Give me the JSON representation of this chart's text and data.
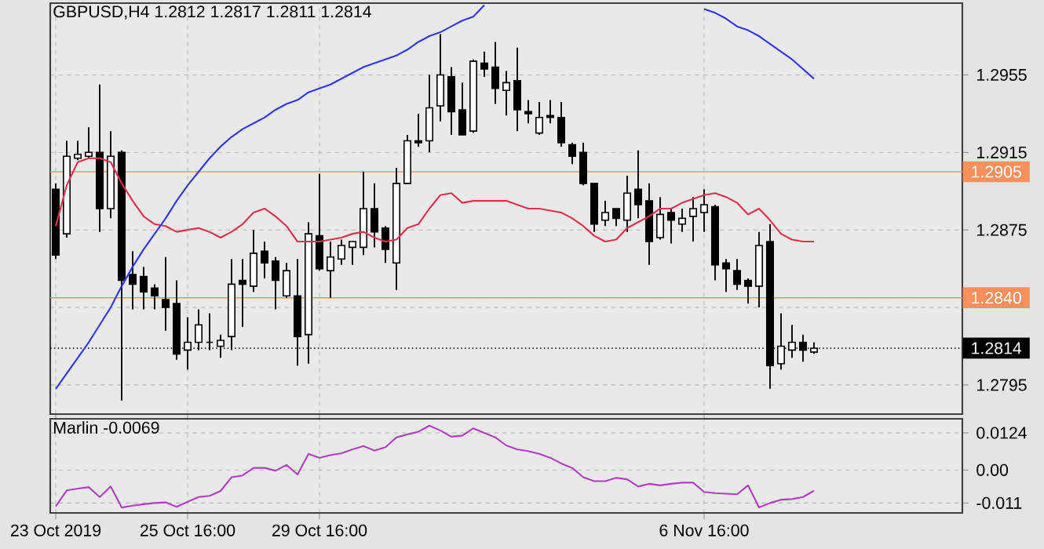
{
  "chart_data": [
    {
      "type": "candlestick",
      "title": "GBPUSD,H4  1.2812 1.2817 1.2811 1.2814",
      "categories": [
        null,
        null,
        null,
        null,
        null,
        null,
        null,
        null,
        null,
        null,
        null,
        null,
        null,
        null,
        null,
        null,
        null,
        null,
        null,
        null,
        null,
        null,
        null,
        null,
        null,
        null,
        null,
        null,
        null,
        null,
        null,
        null,
        null,
        null,
        null,
        null,
        null,
        null,
        null,
        null,
        null,
        null,
        null,
        null,
        null,
        null,
        null,
        null,
        null,
        null,
        null,
        null,
        null,
        null,
        null,
        null,
        null,
        null,
        null,
        null,
        null,
        null,
        null,
        null,
        null,
        null,
        null,
        null,
        null,
        null,
        null,
        null,
        null,
        null,
        null,
        null,
        null,
        null,
        null,
        null,
        null,
        null,
        null
      ],
      "ohlc": [
        [
          1.2896,
          1.2899,
          1.286,
          1.2862
        ],
        [
          1.2873,
          1.2921,
          1.2871,
          1.2913
        ],
        [
          1.2912,
          1.2921,
          1.2911,
          1.2914
        ],
        [
          1.2913,
          1.2928,
          1.2912,
          1.2915
        ],
        [
          1.2915,
          1.295,
          1.2874,
          1.2886
        ],
        [
          1.2886,
          1.2926,
          1.2881,
          1.2913
        ],
        [
          1.2915,
          1.2916,
          1.2787,
          1.2849
        ],
        [
          1.2852,
          1.2864,
          1.2834,
          1.2847
        ],
        [
          1.2851,
          1.2856,
          1.2834,
          1.2843
        ],
        [
          1.2845,
          1.2847,
          1.2834,
          1.2841
        ],
        [
          1.2839,
          1.2861,
          1.2823,
          1.2835
        ],
        [
          1.2837,
          1.2849,
          1.2808,
          1.2811
        ],
        [
          1.2813,
          1.283,
          1.2803,
          1.2817
        ],
        [
          1.2817,
          1.2834,
          1.2813,
          1.2826
        ],
        [
          1.2817,
          1.2832,
          1.2813,
          1.2817
        ],
        [
          1.2815,
          1.2821,
          1.2809,
          1.2818
        ],
        [
          1.282,
          1.286,
          1.2813,
          1.2847
        ],
        [
          1.2849,
          1.286,
          1.2825,
          1.2847
        ],
        [
          1.2846,
          1.2875,
          1.2843,
          1.2863
        ],
        [
          1.2864,
          1.2869,
          1.285,
          1.2858
        ],
        [
          1.2859,
          1.2861,
          1.2834,
          1.2849
        ],
        [
          1.2841,
          1.2858,
          1.284,
          1.2854
        ],
        [
          1.2841,
          1.286,
          1.2805,
          1.282
        ],
        [
          1.2821,
          1.2879,
          1.2806,
          1.2873
        ],
        [
          1.2872,
          1.2904,
          1.2854,
          1.2855
        ],
        [
          1.2854,
          1.2869,
          1.284,
          1.2861
        ],
        [
          1.286,
          1.287,
          1.2857,
          1.2867
        ],
        [
          1.2866,
          1.2869,
          1.2857,
          1.2869
        ],
        [
          1.2866,
          1.2905,
          1.2862,
          1.2886
        ],
        [
          1.2886,
          1.2899,
          1.2866,
          1.2874
        ],
        [
          1.2876,
          1.2877,
          1.2858,
          1.2865
        ],
        [
          1.2858,
          1.2907,
          1.2844,
          1.2899
        ],
        [
          1.2899,
          1.2924,
          1.2899,
          1.2921
        ],
        [
          1.2921,
          1.2935,
          1.2918,
          1.292
        ],
        [
          1.2921,
          1.2955,
          1.2915,
          1.2938
        ],
        [
          1.2939,
          1.2976,
          1.2931,
          1.2955
        ],
        [
          1.2954,
          1.2959,
          1.2924,
          1.2936
        ],
        [
          1.2937,
          1.2951,
          1.2924,
          1.2924
        ],
        [
          1.2926,
          1.2963,
          1.2925,
          1.2962
        ],
        [
          1.2961,
          1.2967,
          1.2954,
          1.2958
        ],
        [
          1.2959,
          1.2972,
          1.294,
          1.2948
        ],
        [
          1.2947,
          1.2957,
          1.2934,
          1.2951
        ],
        [
          1.2952,
          1.2969,
          1.2926,
          1.2937
        ],
        [
          1.2936,
          1.2942,
          1.293,
          1.2935
        ],
        [
          1.2925,
          1.2941,
          1.2924,
          1.2933
        ],
        [
          1.2934,
          1.2942,
          1.293,
          1.2933
        ],
        [
          1.2933,
          1.2941,
          1.2918,
          1.292
        ],
        [
          1.2919,
          1.292,
          1.2909,
          1.2913
        ],
        [
          1.2915,
          1.292,
          1.2898,
          1.2899
        ],
        [
          1.2899,
          1.2899,
          1.2874,
          1.2878
        ],
        [
          1.288,
          1.289,
          1.2877,
          1.2884
        ],
        [
          1.2886,
          1.2886,
          1.2877,
          1.2881
        ],
        [
          1.288,
          1.2903,
          1.2874,
          1.2894
        ],
        [
          1.2896,
          1.2916,
          1.2881,
          1.2888
        ],
        [
          1.289,
          1.2899,
          1.2857,
          1.2869
        ],
        [
          1.2871,
          1.2892,
          1.287,
          1.2883
        ],
        [
          1.2884,
          1.2886,
          1.2868,
          1.288
        ],
        [
          1.2878,
          1.2886,
          1.2874,
          1.2881
        ],
        [
          1.2882,
          1.2892,
          1.2869,
          1.2886
        ],
        [
          1.2884,
          1.2896,
          1.2874,
          1.2888
        ],
        [
          1.2887,
          1.2888,
          1.2849,
          1.2857
        ],
        [
          1.2858,
          1.286,
          1.2843,
          1.2855
        ],
        [
          1.2854,
          1.286,
          1.2844,
          1.2847
        ],
        [
          1.2849,
          1.285,
          1.2837,
          1.2846
        ],
        [
          1.2846,
          1.2874,
          1.2835,
          1.2867
        ],
        [
          1.2869,
          1.2878,
          1.2793,
          1.2805
        ],
        [
          1.2806,
          1.2832,
          1.2803,
          1.2815
        ],
        [
          1.2813,
          1.2826,
          1.2809,
          1.2817
        ],
        [
          1.2817,
          1.2821,
          1.2807,
          1.2813
        ],
        [
          1.2812,
          1.2817,
          1.2811,
          1.2814
        ],
        null,
        null,
        null,
        null,
        null,
        null,
        null,
        null,
        null,
        null,
        null,
        null,
        null
      ],
      "series": [
        {
          "type": "line",
          "color": "#e03050",
          "values": [
            1.2877,
            1.2898,
            1.291,
            1.2912,
            1.2912,
            1.291,
            1.2899,
            1.289,
            1.2882,
            1.2878,
            1.2877,
            1.2874,
            1.2875,
            1.2876,
            1.2874,
            1.2871,
            1.2874,
            1.2878,
            1.2884,
            1.2886,
            1.2882,
            1.2877,
            1.2869,
            1.2869,
            1.2869,
            1.287,
            1.2871,
            1.2873,
            1.2874,
            1.2871,
            1.2869,
            1.287,
            1.2876,
            1.2878,
            1.2886,
            1.2893,
            1.2894,
            1.2889,
            1.289,
            1.289,
            1.289,
            1.289,
            1.2888,
            1.2886,
            1.2886,
            1.2885,
            1.2884,
            1.2881,
            1.2877,
            1.2872,
            1.2869,
            1.287,
            1.2876,
            1.2879,
            1.2882,
            1.2886,
            1.2886,
            1.2889,
            1.2891,
            1.2893,
            1.2894,
            1.2892,
            1.2889,
            1.2883,
            1.2886,
            1.288,
            1.2873,
            1.287,
            1.2869,
            1.2869,
            null,
            null,
            null,
            null,
            null,
            null,
            null,
            null,
            null,
            null,
            null,
            null,
            null
          ]
        },
        {
          "type": "line",
          "color": "#3434ff",
          "values": [
            1.2793,
            1.2801,
            1.2809,
            1.2817,
            1.2826,
            1.2835,
            1.2846,
            1.2856,
            1.2865,
            1.2873,
            1.2881,
            1.289,
            1.2898,
            1.2905,
            1.2912,
            1.2918,
            1.2923,
            1.2927,
            1.293,
            1.2933,
            1.2937,
            1.294,
            1.2942,
            1.2946,
            1.2948,
            1.295,
            1.2953,
            1.2956,
            1.2959,
            1.2961,
            1.2963,
            1.2965,
            1.2968,
            1.2972,
            1.2975,
            1.2977,
            1.298,
            1.2983,
            1.2985,
            1.2991,
            null,
            null,
            null,
            null,
            null,
            null,
            null,
            null,
            null,
            null,
            null,
            null,
            null,
            null,
            null,
            null,
            null,
            null,
            null,
            1.2989,
            1.2987,
            1.2984,
            1.298,
            1.2978,
            1.2975,
            1.2971,
            1.2967,
            1.2963,
            1.2958,
            1.2953,
            null,
            null,
            null,
            null,
            null,
            null,
            null,
            null,
            null,
            null,
            null,
            null,
            null
          ]
        }
      ],
      "ylim": [
        1.278,
        1.2992
      ],
      "yticks": [
        1.2795,
        {
          "value": 1.2835,
          "label": null
        },
        1.2875,
        1.2915,
        1.2955
      ],
      "ref_lines": [
        {
          "axis": "y",
          "value": 1.2905,
          "label": "1.2905",
          "color": "#f7905c"
        },
        {
          "axis": "y",
          "value": 1.284,
          "label": "1.2840",
          "color": "#f7905c"
        },
        {
          "axis": "y",
          "value": 1.2814,
          "label": "1.2814",
          "color": "#000000",
          "line_style": "dotted"
        }
      ],
      "grid": true,
      "tick_labels": "y"
    },
    {
      "type": "line",
      "title": "Marlin -0.0069",
      "categories": [
        "23 Oct 2019",
        null,
        null,
        null,
        null,
        null,
        null,
        null,
        null,
        null,
        null,
        null,
        "25 Oct 16:00",
        null,
        null,
        null,
        null,
        null,
        null,
        null,
        null,
        null,
        null,
        null,
        "29 Oct 16:00",
        null,
        null,
        null,
        null,
        null,
        null,
        null,
        null,
        null,
        null,
        null,
        null,
        null,
        null,
        null,
        null,
        null,
        null,
        null,
        null,
        null,
        null,
        null,
        null,
        null,
        null,
        null,
        null,
        null,
        null,
        null,
        null,
        null,
        null,
        "6 Nov 16:00",
        null,
        null,
        null,
        null,
        null,
        null,
        null,
        null,
        null,
        null,
        null,
        null,
        null,
        null,
        null,
        null,
        null,
        null,
        null,
        null,
        null,
        null,
        null
      ],
      "series": [
        {
          "color": "#b040c0",
          "values": [
            -0.0121,
            -0.0068,
            -0.0062,
            -0.0057,
            -0.009,
            -0.0055,
            -0.0125,
            -0.0119,
            -0.0114,
            -0.011,
            -0.0108,
            -0.0123,
            -0.0106,
            -0.009,
            -0.0086,
            -0.007,
            -0.0024,
            -0.0018,
            0.0007,
            0.0007,
            -0.0002,
            0.0017,
            -0.0015,
            0.0054,
            0.0041,
            0.005,
            0.0056,
            0.0069,
            0.008,
            0.0065,
            0.0076,
            0.0109,
            0.0119,
            0.0128,
            0.0148,
            0.0132,
            0.0111,
            0.0115,
            0.0139,
            0.0124,
            0.0109,
            0.0082,
            0.0069,
            0.0063,
            0.0054,
            0.0041,
            0.0022,
            0.0007,
            -0.0024,
            -0.0037,
            -0.0037,
            -0.0026,
            -0.0031,
            -0.0055,
            -0.0046,
            -0.0051,
            -0.0046,
            -0.0042,
            -0.0042,
            -0.0073,
            -0.0077,
            -0.0079,
            -0.0081,
            -0.0051,
            -0.0125,
            -0.011,
            -0.0099,
            -0.0097,
            -0.009,
            -0.0069,
            null,
            null,
            null,
            null,
            null,
            null,
            null,
            null,
            null,
            null,
            null,
            null,
            null
          ]
        }
      ],
      "ylim": [
        -0.0143,
        0.0171
      ],
      "yticks": [
        0.0124,
        {
          "value": 0,
          "label": "0.00"
        },
        -0.011
      ],
      "grid": true
    }
  ]
}
